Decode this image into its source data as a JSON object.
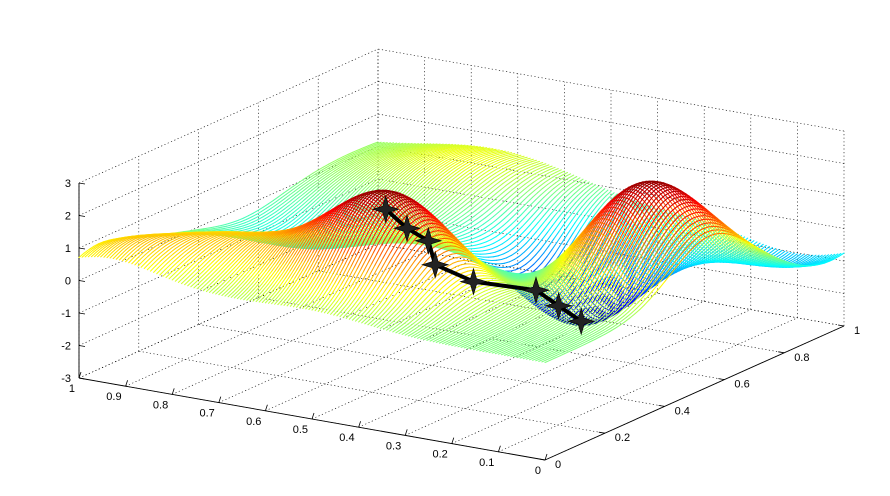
{
  "chart_data": {
    "type": "surface",
    "colormap": "jet",
    "grid": true,
    "x_axis": {
      "range": [
        0,
        1
      ],
      "ticks": [
        "0",
        "0.1",
        "0.2",
        "0.3",
        "0.4",
        "0.5",
        "0.6",
        "0.7",
        "0.8",
        "0.9",
        "1"
      ]
    },
    "y_axis": {
      "range": [
        0,
        1
      ],
      "ticks": [
        "0",
        "0.2",
        "0.4",
        "0.6",
        "0.8",
        "1"
      ]
    },
    "z_axis": {
      "range": [
        -3,
        3
      ],
      "ticks": [
        "-3",
        "-2",
        "-1",
        "0",
        "1",
        "2",
        "3"
      ]
    },
    "bumps": [
      {
        "x": 0.5,
        "y": 0.25,
        "amplitude": 2.9,
        "width": 0.12
      },
      {
        "x": 0.15,
        "y": 0.55,
        "amplitude": 3.2,
        "width": 0.13
      },
      {
        "x": 0.8,
        "y": 0.2,
        "amplitude": 0.9,
        "width": 0.13
      },
      {
        "x": 0.75,
        "y": 0.9,
        "amplitude": 0.7,
        "width": 0.15
      },
      {
        "x": 0.4,
        "y": 0.75,
        "amplitude": -3.1,
        "width": 0.12
      },
      {
        "x": 0.3,
        "y": 0.45,
        "amplitude": -1.2,
        "width": 0.1
      },
      {
        "x": 0.85,
        "y": 0.55,
        "amplitude": -0.8,
        "width": 0.12
      },
      {
        "x": 0.1,
        "y": 0.95,
        "amplitude": -1.1,
        "width": 0.13
      },
      {
        "x": 0.95,
        "y": 0.05,
        "amplitude": 0.8,
        "width": 0.1
      }
    ],
    "descent_path": [
      {
        "x": 0.56,
        "y": 0.34,
        "z": 1.9
      },
      {
        "x": 0.54,
        "y": 0.38,
        "z": 1.2
      },
      {
        "x": 0.52,
        "y": 0.42,
        "z": 0.7
      },
      {
        "x": 0.55,
        "y": 0.49,
        "z": -0.4
      },
      {
        "x": 0.5,
        "y": 0.54,
        "z": -1.0
      },
      {
        "x": 0.43,
        "y": 0.64,
        "z": -1.5
      },
      {
        "x": 0.42,
        "y": 0.7,
        "z": -2.2
      },
      {
        "x": 0.41,
        "y": 0.76,
        "z": -2.9
      }
    ]
  }
}
